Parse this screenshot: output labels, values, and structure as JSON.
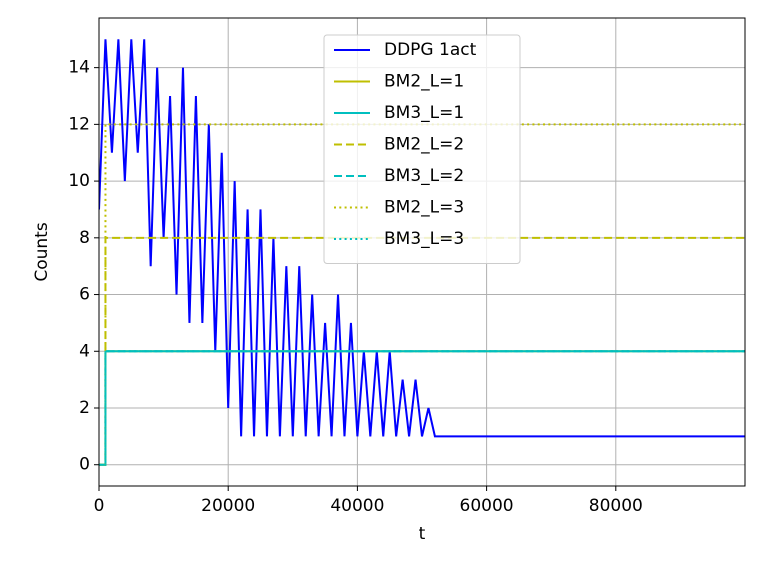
{
  "chart_data": {
    "type": "line",
    "xlabel": "t",
    "ylabel": "Counts",
    "xlim": [
      0,
      100000
    ],
    "ylim": [
      -0.75,
      15.75
    ],
    "xticks": [
      0,
      20000,
      40000,
      60000,
      80000
    ],
    "yticks": [
      0,
      2,
      4,
      6,
      8,
      10,
      12,
      14
    ],
    "grid": true,
    "legend": "upper center",
    "series": [
      {
        "name": "DDPG 1act",
        "color": "#0000ff",
        "dash": "solid",
        "x": [
          0,
          1000,
          2000,
          3000,
          4000,
          5000,
          6000,
          7000,
          8000,
          9000,
          10000,
          11000,
          12000,
          13000,
          14000,
          15000,
          16000,
          17000,
          18000,
          19000,
          20000,
          21000,
          22000,
          23000,
          24000,
          25000,
          26000,
          27000,
          28000,
          29000,
          30000,
          31000,
          32000,
          33000,
          34000,
          35000,
          36000,
          37000,
          38000,
          39000,
          40000,
          41000,
          42000,
          43000,
          44000,
          45000,
          46000,
          47000,
          48000,
          49000,
          50000,
          51000,
          52000,
          100000
        ],
        "values": [
          9,
          15,
          11,
          15,
          10,
          15,
          11,
          15,
          7,
          14,
          8,
          13,
          6,
          14,
          5,
          13,
          5,
          12,
          4,
          11,
          2,
          10,
          1,
          9,
          1,
          9,
          1,
          8,
          1,
          7,
          1,
          7,
          1,
          6,
          1,
          5,
          1,
          6,
          1,
          5,
          1,
          4,
          1,
          4,
          1,
          4,
          1,
          3,
          1,
          3,
          1,
          2,
          1,
          1
        ]
      },
      {
        "name": "BM2_L=1",
        "color": "#bfbf00",
        "dash": "solid",
        "x": [
          0,
          1000,
          1000,
          100000
        ],
        "values": [
          0,
          0,
          4,
          4
        ]
      },
      {
        "name": "BM3_L=1",
        "color": "#00bfbf",
        "dash": "solid",
        "x": [
          0,
          1000,
          1000,
          100000
        ],
        "values": [
          0,
          0,
          4,
          4
        ]
      },
      {
        "name": "BM2_L=2",
        "color": "#bfbf00",
        "dash": "dashed",
        "x": [
          0,
          1000,
          1000,
          100000
        ],
        "values": [
          0,
          0,
          8,
          8
        ]
      },
      {
        "name": "BM3_L=2",
        "color": "#00bfbf",
        "dash": "dashed",
        "x": [
          0,
          1000,
          1000,
          100000
        ],
        "values": [
          0,
          0,
          4,
          4
        ]
      },
      {
        "name": "BM2_L=3",
        "color": "#bfbf00",
        "dash": "dotted",
        "x": [
          0,
          1000,
          1000,
          100000
        ],
        "values": [
          0,
          0,
          12,
          12
        ]
      },
      {
        "name": "BM3_L=3",
        "color": "#00bfbf",
        "dash": "dotted",
        "x": [
          0,
          1000,
          1000,
          100000
        ],
        "values": [
          0,
          0,
          4,
          4
        ]
      }
    ]
  }
}
